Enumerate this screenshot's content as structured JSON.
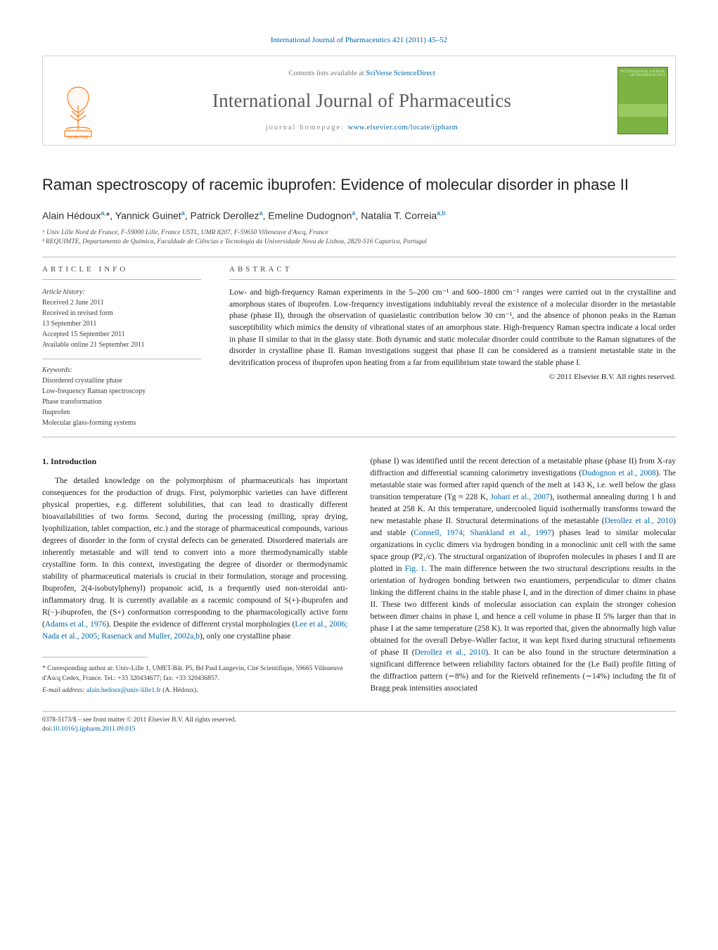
{
  "header": {
    "top_link": "International Journal of Pharmaceutics 421 (2011) 45–52",
    "contents_line_prefix": "Contents lists available at ",
    "contents_line_link": "SciVerse ScienceDirect",
    "journal_name": "International Journal of Pharmaceutics",
    "homepage_label": "journal homepage: ",
    "homepage_url": "www.elsevier.com/locate/ijpharm",
    "elsevier_logo_color": "#ff7b1a",
    "cover_bg": "#7cb342",
    "cover_small_text": "INTERNATIONAL JOURNAL OF PHARMACEUTICS"
  },
  "article": {
    "title": "Raman spectroscopy of racemic ibuprofen: Evidence of molecular disorder in phase II",
    "authors_html": "Alain Hédoux<sup>a,</sup><span class='star'>*</span>, Yannick Guinet<sup>a</sup>, Patrick Derollez<sup>a</sup>, Emeline Dudognon<sup>a</sup>, Natalia T. Correia<sup>a,b</sup>",
    "affiliations": [
      "ᵃ Univ Lille Nord de France, F-59000 Lille, France USTL, UMR 8207, F-59650 Villeneuve d'Ascq, France",
      "ᵇ REQUIMTE, Departamento de Química, Faculdade de Ciências e Tecnologia da Universidade Nova de Lisboa, 2829-516 Caparica, Portugal"
    ]
  },
  "info": {
    "heading": "ARTICLE INFO",
    "history_label": "Article history:",
    "history": [
      "Received 2 June 2011",
      "Received in revised form",
      "13 September 2011",
      "Accepted 15 September 2011",
      "Available online 21 September 2011"
    ],
    "keywords_label": "Keywords:",
    "keywords": [
      "Disordered crystalline phase",
      "Low-frequency Raman spectroscopy",
      "Phase transformation",
      "Ibuprofen",
      "Molecular glass-forming systems"
    ]
  },
  "abstract": {
    "heading": "ABSTRACT",
    "text": "Low- and high-frequency Raman experiments in the 5–200 cm⁻¹ and 600–1800 cm⁻¹ ranges were carried out in the crystalline and amorphous states of ibuprofen. Low-frequency investigations indubitably reveal the existence of a molecular disorder in the metastable phase (phase II), through the observation of quasielastic contribution below 30 cm⁻¹, and the absence of phonon peaks in the Raman susceptibility which mimics the density of vibrational states of an amorphous state. High-frequency Raman spectra indicate a local order in phase II similar to that in the glassy state. Both dynamic and static molecular disorder could contribute to the Raman signatures of the disorder in crystalline phase II. Raman investigations suggest that phase II can be considered as a transient metastable state in the devitrification process of ibuprofen upon heating from a far from equilibrium state toward the stable phase I.",
    "copyright": "© 2011 Elsevier B.V. All rights reserved."
  },
  "body": {
    "sec_heading": "1. Introduction",
    "left": "The detailed knowledge on the polymorphism of pharmaceuticals has important consequences for the production of drugs. First, polymorphic varieties can have different physical properties, e.g. different solubilities, that can lead to drastically different bioavailabilities of two forms. Second, during the processing (milling, spray drying, lyophilization, tablet compaction, etc.) and the storage of pharmaceutical compounds, various degrees of disorder in the form of crystal defects can be generated. Disordered materials are inherently metastable and will tend to convert into a more thermodynamically stable crystalline form. In this context, investigating the degree of disorder or thermodynamic stability of pharmaceutical materials is crucial in their formulation, storage and processing. Ibuprofen, 2(4-isobutylphenyl) propanoic acid, is a frequently used non-steroidal anti-inflammatory drug. It is currently available as a racemic compound of S(+)-ibuprofen and R(−)-ibuprofen, the (S+) conformation corresponding to the pharmacologically active form (",
    "left_cite1": "Adams et al., 1976",
    "left2": "). Despite the evidence of different crystal morphologies (",
    "left_cite2": "Lee et al., 2006; Nada et al., 2005; Rasenack and Muller, 2002a,b",
    "left3": "), only one crystalline phase",
    "right": "(phase I) was identified until the recent detection of a metastable phase (phase II) from X-ray diffraction and differential scanning calorimetry investigations (",
    "r_cite1": "Dudognon et al., 2008",
    "right2": "). The metastable state was formed after rapid quench of the melt at 143 K, i.e. well below the glass transition temperature (Tg ≈ 228 K, ",
    "r_cite2": "Johari et al., 2007",
    "right3": "), isothermal annealing during 1 h and heated at 258 K. At this temperature, undercooled liquid isothermally transforms toward the new metastable phase II. Structural determinations of the metastable (",
    "r_cite3": "Derollez et al., 2010",
    "right4": ") and stable (",
    "r_cite4": "Connell, 1974; Shankland et al., 1997",
    "right5": ") phases lead to similar molecular organizations in cyclic dimers via hydrogen bonding in a monoclinic unit cell with the same space group (P2₁/c). The structural organization of ibuprofen molecules in phases I and II are plotted in ",
    "r_fig": "Fig. 1",
    "right6": ". The main difference between the two structural descriptions results in the orientation of hydrogen bonding between two enantiomers, perpendicular to dimer chains linking the different chains in the stable phase I, and in the direction of dimer chains in phase II. These two different kinds of molecular association can explain the stronger cohesion between dimer chains in phase I, and hence a cell volume in phase II 5% larger than that in phase I at the same temperature (258 K). It was reported that, given the abnormally high value obtained for the overall Debye–Waller factor, it was kept fixed during structural refinements of phase II (",
    "r_cite5": "Derollez et al., 2010",
    "right7": "). It can be also found in the structure determination a significant difference between reliability factors obtained for the (Le Bail) profile fitting of the diffraction pattern (∼8%) and for the Rietveld refinements (∼14%) including the fit of Bragg peak intensities associated"
  },
  "footnote": {
    "corr": "* Corresponding author at: Univ-Lille 1, UMET-Bât. P5, Bd Paul Langevin, Cité Scientifique, 59665 Villeneuve d'Ascq Cedex, France. Tel.: +33 320434677; fax: +33 320436857.",
    "email_label": "E-mail address: ",
    "email": "alain.hedoux@univ-lille1.fr",
    "email_tail": " (A. Hédoux)."
  },
  "bottom": {
    "line1": "0378-5173/$ – see front matter © 2011 Elsevier B.V. All rights reserved.",
    "doi_label": "doi:",
    "doi": "10.1016/j.ijpharm.2011.09.015"
  },
  "colors": {
    "link": "#0066aa",
    "text": "#222222",
    "rule": "#b9b9b9"
  }
}
